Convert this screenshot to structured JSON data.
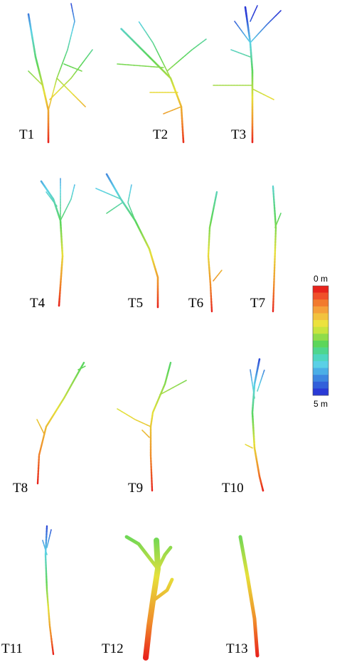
{
  "figure": {
    "tree_labels": [
      "T1",
      "T2",
      "T3",
      "T4",
      "T5",
      "T6",
      "T7",
      "T8",
      "T9",
      "T10",
      "T11",
      "T12",
      "T13"
    ],
    "colorbar": {
      "top_label": "0 m",
      "bottom_label": "5 m"
    }
  }
}
